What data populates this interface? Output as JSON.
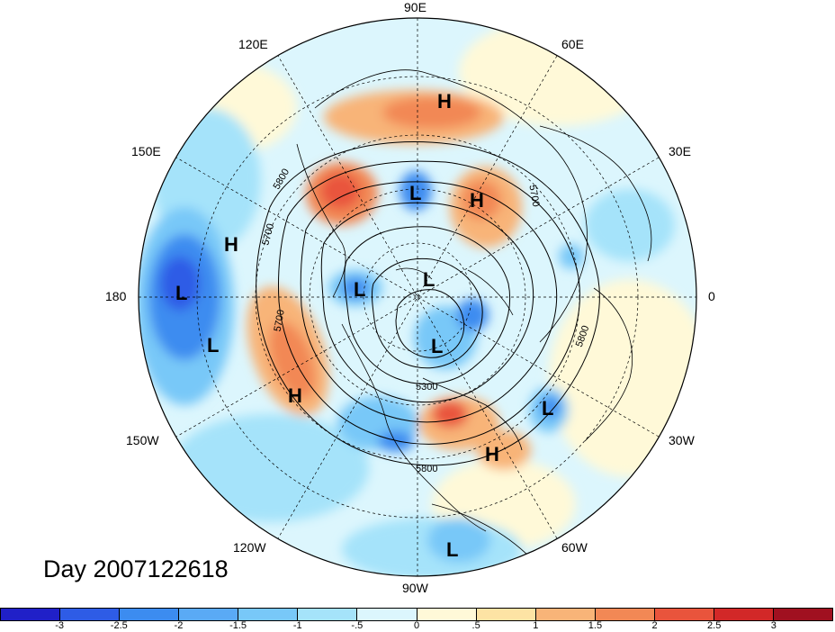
{
  "title": "Day 2007122618",
  "longitude_labels": [
    "90E",
    "60E",
    "30E",
    "0",
    "30W",
    "60W",
    "90W",
    "120W",
    "150W",
    "180",
    "150E",
    "120E"
  ],
  "colorbar": {
    "colors": [
      "#2020c8",
      "#2e5ce6",
      "#3c8cf0",
      "#5aaaf5",
      "#78c8f8",
      "#a5e3fa",
      "#dcf6fd",
      "#fff9d8",
      "#fde3a4",
      "#f8b478",
      "#f28855",
      "#e9543c",
      "#d22828",
      "#a01020"
    ],
    "tick_labels": [
      "-3",
      "-2.5",
      "-2",
      "-1.5",
      "-1",
      "-.5",
      "0",
      ".5",
      "1",
      "1.5",
      "2",
      "2.5",
      "3"
    ]
  },
  "pressure_centers": [
    {
      "type": "H",
      "label": "H"
    },
    {
      "type": "L",
      "label": "L"
    },
    {
      "type": "H",
      "label": "H"
    },
    {
      "type": "H",
      "label": "H"
    },
    {
      "type": "L",
      "label": "L"
    },
    {
      "type": "L",
      "label": "L"
    },
    {
      "type": "L",
      "label": "L"
    },
    {
      "type": "L",
      "label": "L"
    },
    {
      "type": "L",
      "label": "L"
    },
    {
      "type": "H",
      "label": "H"
    },
    {
      "type": "L",
      "label": "L"
    },
    {
      "type": "H",
      "label": "H"
    },
    {
      "type": "L",
      "label": "L"
    }
  ],
  "contour_labels": [
    "5800",
    "5700",
    "5700",
    "5700",
    "5800",
    "5300",
    "5800"
  ]
}
